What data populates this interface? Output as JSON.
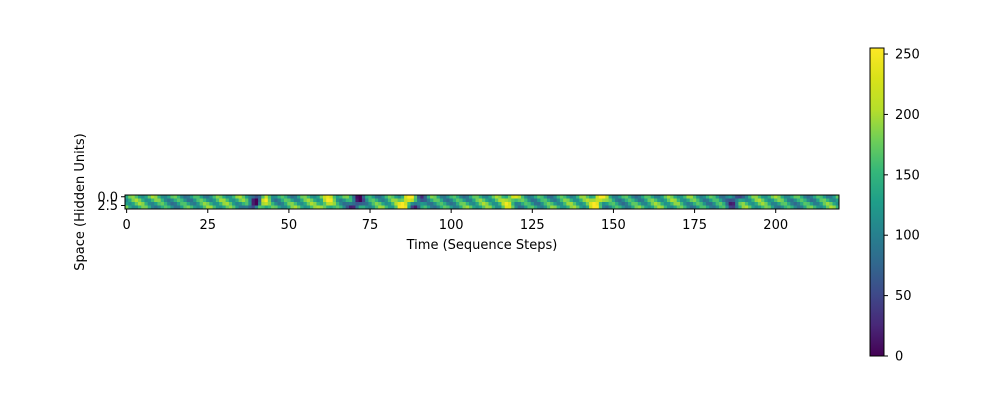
{
  "chart_data": {
    "type": "heatmap",
    "title": "",
    "xlabel": "Time (Sequence Steps)",
    "ylabel": "Space (Hidden Units)",
    "n_cols": 220,
    "n_rows": 4,
    "x_ticks": [
      0,
      25,
      50,
      75,
      100,
      125,
      150,
      175,
      200
    ],
    "y_ticks": [
      0.0,
      2.5
    ],
    "y_tick_labels": [
      "0.0",
      "2.5"
    ],
    "xlim": [
      -0.5,
      219.5
    ],
    "ylim": [
      3.5,
      -0.5
    ],
    "colormap": "viridis",
    "colorbar": {
      "vmin": 0,
      "vmax": 255,
      "ticks": [
        0,
        50,
        100,
        150,
        200,
        250
      ],
      "tick_labels": [
        "0",
        "50",
        "100",
        "150",
        "200",
        "250"
      ]
    },
    "description_of_values": "Diagonal traveling-wave pattern; values mostly 100-200 with bright peaks (~255) near steps 42, 86, 145 and dark troughs near 40, 71, 90, 187",
    "notable_peaks": [
      {
        "x": 42,
        "value": 255
      },
      {
        "x": 86,
        "value": 240
      },
      {
        "x": 145,
        "value": 250
      },
      {
        "x": 62,
        "value": 210
      },
      {
        "x": 118,
        "value": 215
      }
    ],
    "notable_troughs": [
      {
        "x": 40,
        "value": 0
      },
      {
        "x": 71,
        "value": 40
      },
      {
        "x": 90,
        "value": 55
      },
      {
        "x": 187,
        "value": 45
      }
    ]
  },
  "figure": {
    "background": "#ffffff"
  }
}
